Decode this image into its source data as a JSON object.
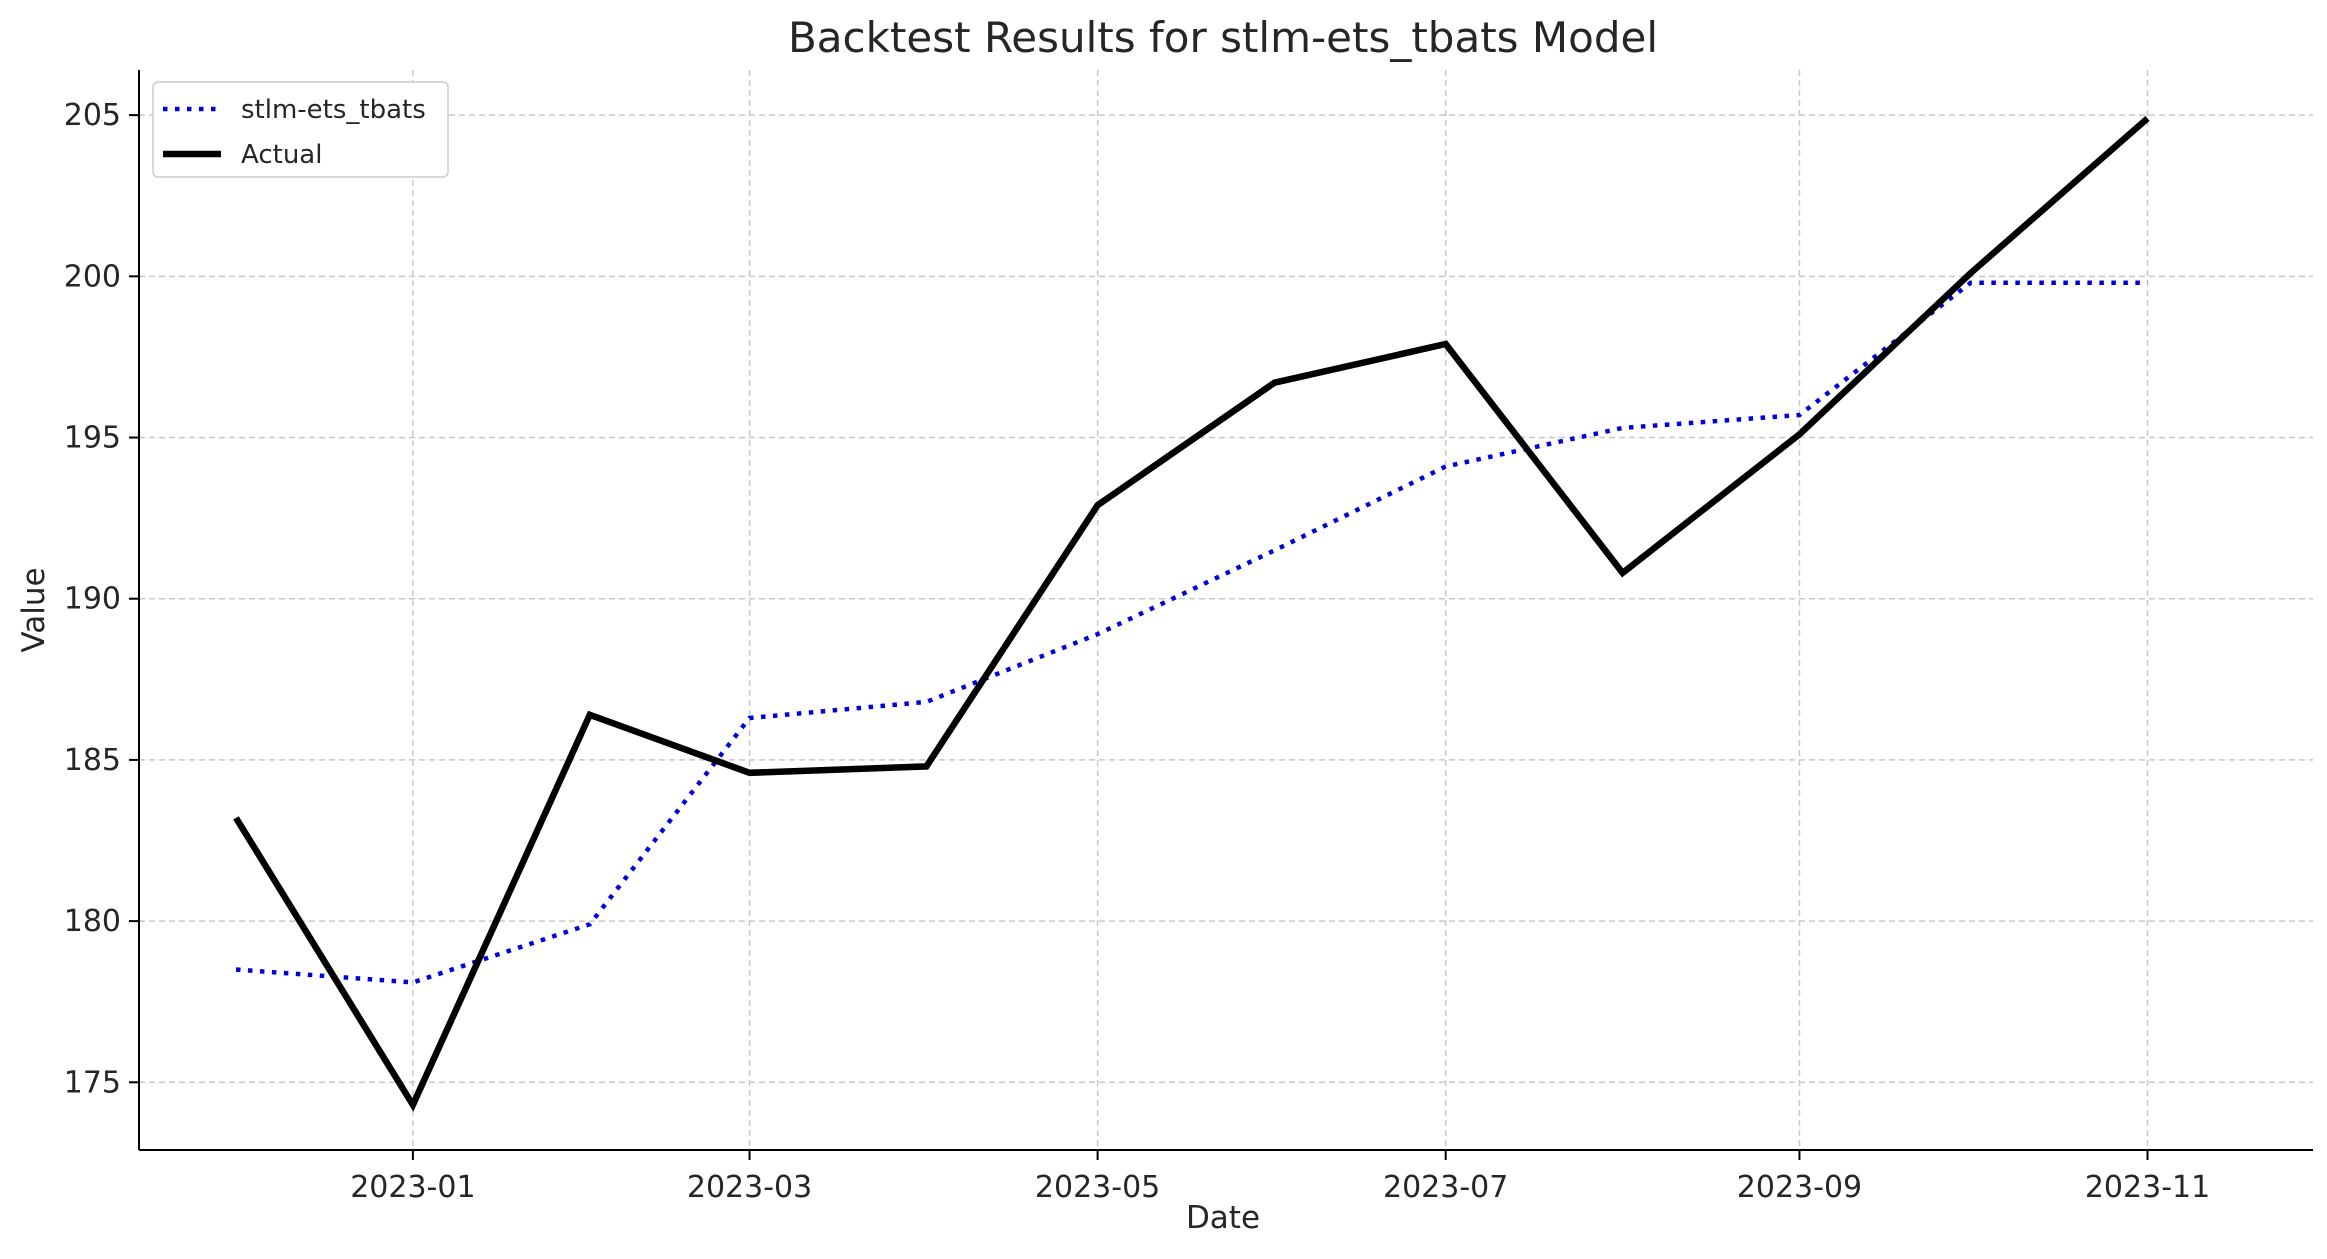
{
  "chart_data": {
    "type": "line",
    "title": "Backtest Results for stlm-ets_tbats Model",
    "xlabel": "Date",
    "ylabel": "Value",
    "x": [
      "2022-12-01",
      "2023-01-01",
      "2023-02-01",
      "2023-03-01",
      "2023-04-01",
      "2023-05-01",
      "2023-06-01",
      "2023-07-01",
      "2023-08-01",
      "2023-09-01",
      "2023-10-01",
      "2023-11-01"
    ],
    "x_ticks": [
      "2023-01",
      "2023-03",
      "2023-05",
      "2023-07",
      "2023-09",
      "2023-11"
    ],
    "x_tick_dates": [
      "2023-01-01",
      "2023-03-01",
      "2023-05-01",
      "2023-07-01",
      "2023-09-01",
      "2023-11-01"
    ],
    "xlim": [
      "2022-11-14",
      "2023-11-30"
    ],
    "y_ticks": [
      175,
      180,
      185,
      190,
      195,
      200,
      205
    ],
    "ylim": [
      172.9,
      206.4
    ],
    "grid": true,
    "legend_position": "top-left",
    "series": [
      {
        "name": "stlm-ets_tbats",
        "color": "#0000dd",
        "style": "dotted",
        "values": [
          178.5,
          178.1,
          179.9,
          186.3,
          186.8,
          188.9,
          191.5,
          194.1,
          195.3,
          195.7,
          199.8,
          199.8
        ]
      },
      {
        "name": "Actual",
        "color": "#000000",
        "style": "solid",
        "values": [
          183.2,
          174.3,
          186.4,
          184.6,
          184.8,
          192.9,
          196.7,
          197.9,
          190.8,
          195.1,
          200.1,
          204.9
        ]
      }
    ]
  }
}
